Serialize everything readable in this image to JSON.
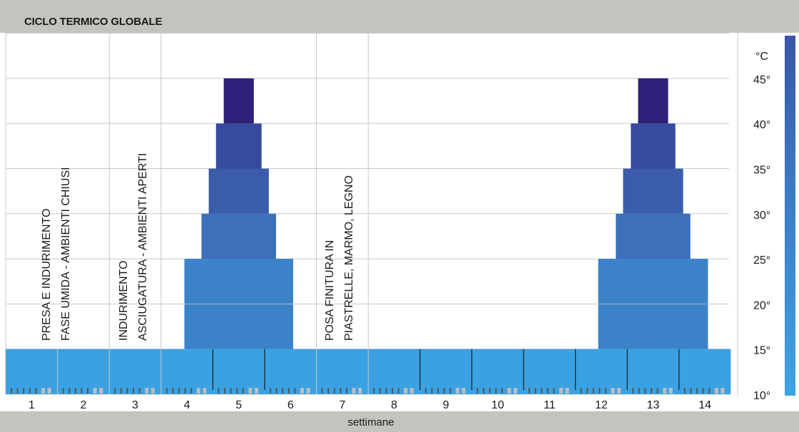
{
  "chart_data": {
    "type": "bar",
    "title": "CICLO TERMICO GLOBALE",
    "xlabel": "settimane",
    "ylabel": "°C",
    "ylim": [
      10,
      50
    ],
    "yticks": [
      "10°",
      "15°",
      "20°",
      "25°",
      "30°",
      "35°",
      "40°",
      "45°"
    ],
    "xticks": [
      "1",
      "2",
      "3",
      "4",
      "5",
      "6",
      "7",
      "8",
      "9",
      "10",
      "11",
      "12",
      "13",
      "14"
    ],
    "phases": [
      {
        "lines": [
          "PRESA E INDURIMENTO",
          "FASE UMIDA - AMBIENTI CHIUSI"
        ],
        "weeks": [
          1,
          2
        ]
      },
      {
        "lines": [
          "INDURIMENTO",
          "ASCIUGATURA - AMBIENTI APERTI"
        ],
        "weeks": [
          3,
          3
        ]
      },
      {
        "lines": [],
        "weeks": [
          4,
          6
        ]
      },
      {
        "lines": [
          "POSA FINITURA IN",
          "PIASTRELLE, MARMO, LEGNO"
        ],
        "weeks": [
          7,
          7
        ]
      }
    ],
    "baseline": {
      "from": 10,
      "to": 15
    },
    "series": [
      {
        "peak_week": 5,
        "tiers": [
          {
            "from": 15,
            "to": 25,
            "half_width_weeks": 1.05
          },
          {
            "from": 25,
            "to": 30,
            "half_width_weeks": 0.72
          },
          {
            "from": 30,
            "to": 35,
            "half_width_weeks": 0.58
          },
          {
            "from": 35,
            "to": 40,
            "half_width_weeks": 0.44
          },
          {
            "from": 40,
            "to": 45,
            "half_width_weeks": 0.29
          }
        ]
      },
      {
        "peak_week": 13,
        "tiers": [
          {
            "from": 15,
            "to": 25,
            "half_width_weeks": 1.06
          },
          {
            "from": 25,
            "to": 30,
            "half_width_weeks": 0.72
          },
          {
            "from": 30,
            "to": 35,
            "half_width_weeks": 0.58
          },
          {
            "from": 35,
            "to": 40,
            "half_width_weeks": 0.43
          },
          {
            "from": 40,
            "to": 45,
            "half_width_weeks": 0.29
          }
        ]
      }
    ],
    "colors": {
      "baseline": "#3aa2e3",
      "tiers": [
        "#3b82c9",
        "#3d6fba",
        "#3a5cab",
        "#384a9e",
        "#30207a"
      ],
      "grid": "#c8c8c8",
      "ticks_dark": "#555555",
      "ticks_light": "#bdbdbd"
    },
    "grid": true
  }
}
